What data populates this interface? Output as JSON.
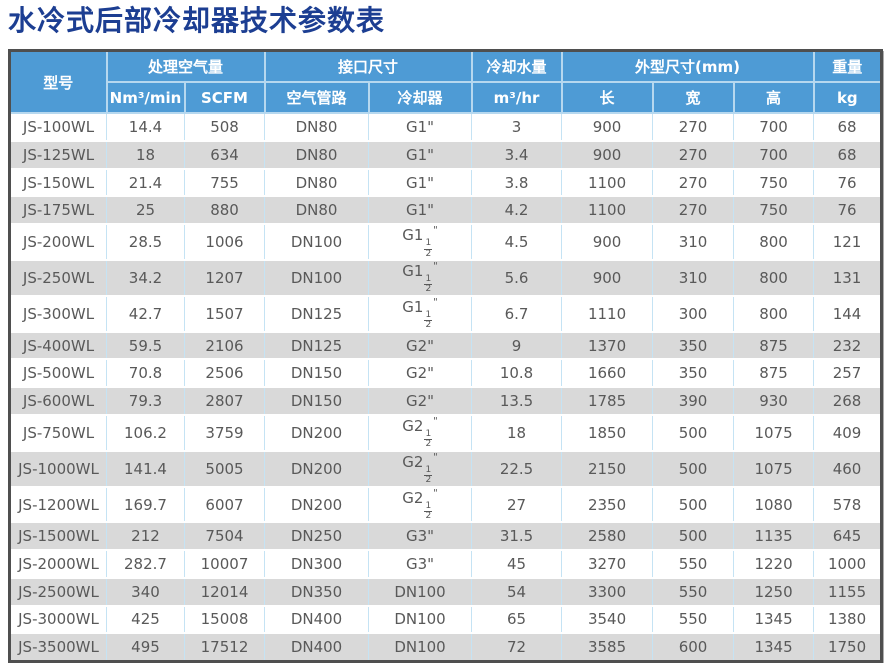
{
  "title": "水冷式后部冷却器技术参数表",
  "colors": {
    "title_blue": "#1c3e92",
    "header_blue": "#4e9bd5",
    "zebra_gray": "#d9d9d9",
    "body_text": "#595959",
    "header_divider": "#b6d8ef",
    "body_divider": "#c5e3f4",
    "outer_border": "#4f4f4f"
  },
  "table": {
    "header": {
      "model": "型号",
      "groups": [
        {
          "label": "处理空气量",
          "cols": [
            "Nm³/min",
            "SCFM"
          ]
        },
        {
          "label": "接口尺寸",
          "cols": [
            "空气管路",
            "冷却器"
          ]
        },
        {
          "label": "冷却水量",
          "cols": [
            "m³/hr"
          ]
        },
        {
          "label": "外型尺寸(mm)",
          "cols": [
            "长",
            "宽",
            "高"
          ]
        },
        {
          "label": "重量",
          "cols": [
            "kg"
          ]
        }
      ]
    },
    "rows": [
      [
        "JS-100WL",
        "14.4",
        "508",
        "DN80",
        "G1\"",
        "3",
        "900",
        "270",
        "700",
        "68"
      ],
      [
        "JS-125WL",
        "18",
        "634",
        "DN80",
        "G1\"",
        "3.4",
        "900",
        "270",
        "700",
        "68"
      ],
      [
        "JS-150WL",
        "21.4",
        "755",
        "DN80",
        "G1\"",
        "3.8",
        "1100",
        "270",
        "750",
        "76"
      ],
      [
        "JS-175WL",
        "25",
        "880",
        "DN80",
        "G1\"",
        "4.2",
        "1100",
        "270",
        "750",
        "76"
      ],
      [
        "JS-200WL",
        "28.5",
        "1006",
        "DN100",
        "G1-1/2\"",
        "4.5",
        "900",
        "310",
        "800",
        "121"
      ],
      [
        "JS-250WL",
        "34.2",
        "1207",
        "DN100",
        "G1-1/2\"",
        "5.6",
        "900",
        "310",
        "800",
        "131"
      ],
      [
        "JS-300WL",
        "42.7",
        "1507",
        "DN125",
        "G1-1/2\"",
        "6.7",
        "1110",
        "300",
        "800",
        "144"
      ],
      [
        "JS-400WL",
        "59.5",
        "2106",
        "DN125",
        "G2\"",
        "9",
        "1370",
        "350",
        "875",
        "232"
      ],
      [
        "JS-500WL",
        "70.8",
        "2506",
        "DN150",
        "G2\"",
        "10.8",
        "1660",
        "350",
        "875",
        "257"
      ],
      [
        "JS-600WL",
        "79.3",
        "2807",
        "DN150",
        "G2\"",
        "13.5",
        "1785",
        "390",
        "930",
        "268"
      ],
      [
        "JS-750WL",
        "106.2",
        "3759",
        "DN200",
        "G2-1/2\"",
        "18",
        "1850",
        "500",
        "1075",
        "409"
      ],
      [
        "JS-1000WL",
        "141.4",
        "5005",
        "DN200",
        "G2-1/2\"",
        "22.5",
        "2150",
        "500",
        "1075",
        "460"
      ],
      [
        "JS-1200WL",
        "169.7",
        "6007",
        "DN200",
        "G2-1/2\"",
        "27",
        "2350",
        "500",
        "1080",
        "578"
      ],
      [
        "JS-1500WL",
        "212",
        "7504",
        "DN250",
        "G3\"",
        "31.5",
        "2580",
        "500",
        "1135",
        "645"
      ],
      [
        "JS-2000WL",
        "282.7",
        "10007",
        "DN300",
        "G3\"",
        "45",
        "3270",
        "550",
        "1220",
        "1000"
      ],
      [
        "JS-2500WL",
        "340",
        "12014",
        "DN350",
        "DN100",
        "54",
        "3300",
        "550",
        "1250",
        "1155"
      ],
      [
        "JS-3000WL",
        "425",
        "15008",
        "DN400",
        "DN100",
        "65",
        "3540",
        "550",
        "1345",
        "1380"
      ],
      [
        "JS-3500WL",
        "495",
        "17512",
        "DN400",
        "DN100",
        "72",
        "3585",
        "600",
        "1345",
        "1750"
      ]
    ],
    "col_names": [
      "model",
      "nm3-per-min",
      "scfm",
      "air-pipe",
      "cooler",
      "water-volume",
      "length",
      "width",
      "height",
      "weight"
    ]
  }
}
